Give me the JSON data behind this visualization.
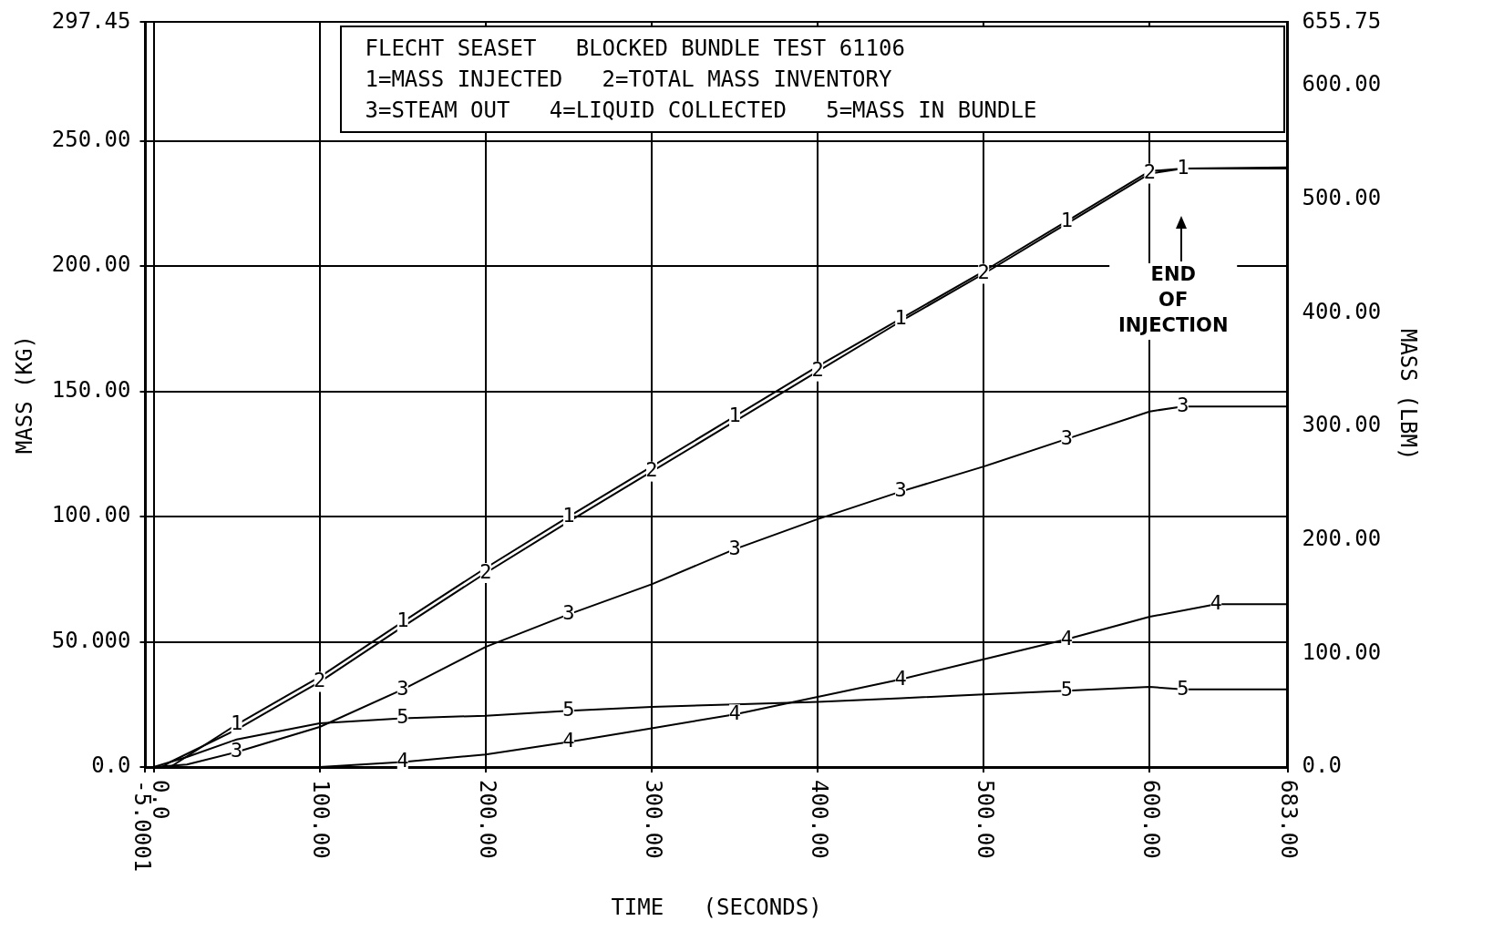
{
  "chart_data": {
    "type": "line",
    "title": "FLECHT SEASET   BLOCKED BUNDLE TEST 61106",
    "xlabel": "TIME   (SECONDS)",
    "ylabel": "MASS (KG)",
    "y2label": "MASS (LBM)",
    "subtitle": "1=MASS INJECTED   2=TOTAL MASS INVENTORY\n3=STEAM OUT   4=LIQUID COLLECTED   5=MASS IN BUNDLE",
    "annotations": [
      "END OF INJECTION"
    ],
    "xlim": [
      -5.0001,
      683
    ],
    "xticks": [
      -5.0001,
      {
        "value": 0,
        "label": "0.0"
      },
      {
        "value": 100,
        "label": "100.00"
      },
      {
        "value": 200,
        "label": "200.00"
      },
      {
        "value": 300,
        "label": "300.00"
      },
      {
        "value": 400,
        "label": "400.00"
      },
      {
        "value": 500,
        "label": "500.00"
      },
      {
        "value": 600,
        "label": "600.00"
      },
      {
        "value": 683,
        "label": "683.00"
      }
    ],
    "ylim": [
      0,
      297.45
    ],
    "yticks": [
      {
        "value": 0,
        "label": "0.0"
      },
      {
        "value": 50,
        "label": "50.000"
      },
      {
        "value": 100,
        "label": "100.00"
      },
      {
        "value": 150,
        "label": "150.00"
      },
      {
        "value": 200,
        "label": "200.00"
      },
      {
        "value": 250,
        "label": "250.00"
      },
      297.45
    ],
    "y2lim": [
      0,
      655.75
    ],
    "y2ticks": [
      {
        "value": 0,
        "label": "0.0"
      },
      {
        "value": 100,
        "label": "100.00"
      },
      {
        "value": 200,
        "label": "200.00"
      },
      {
        "value": 300,
        "label": "300.00"
      },
      {
        "value": 400,
        "label": "400.00"
      },
      {
        "value": 500,
        "label": "500.00"
      },
      {
        "value": 600,
        "label": "600.00"
      },
      655.75
    ],
    "grid": true,
    "legend": false,
    "marker": "none",
    "line_style": "solid",
    "series": [
      {
        "name": "1",
        "color": "#000000",
        "x": [
          0,
          10,
          50,
          100,
          150,
          200,
          250,
          300,
          350,
          400,
          450,
          500,
          550,
          600,
          620,
          683
        ],
        "values": [
          0,
          0,
          17,
          36,
          58,
          79.5,
          100,
          120,
          140,
          160,
          179,
          198,
          218,
          238,
          239,
          239.5
        ]
      },
      {
        "name": "2",
        "color": "#000000",
        "x": [
          5,
          10,
          50,
          100,
          150,
          200,
          250,
          300,
          350,
          400,
          450,
          500,
          550,
          600,
          620,
          683
        ],
        "values": [
          0,
          2,
          15,
          34,
          56,
          77.5,
          98,
          118,
          138,
          158,
          178,
          197,
          217,
          237,
          239,
          239
        ]
      },
      {
        "name": "3",
        "color": "#000000",
        "x": [
          0,
          20,
          50,
          100,
          150,
          200,
          250,
          300,
          350,
          400,
          450,
          500,
          550,
          600,
          620,
          683
        ],
        "values": [
          0,
          1,
          6,
          16,
          31,
          48,
          61,
          73,
          87,
          99,
          110,
          120,
          131,
          142,
          144,
          144
        ]
      },
      {
        "name": "4",
        "color": "#000000",
        "x": [
          0,
          50,
          100,
          150,
          200,
          250,
          300,
          350,
          400,
          450,
          500,
          550,
          600,
          640,
          683
        ],
        "values": [
          0,
          0,
          0,
          2,
          5,
          10,
          15.5,
          21,
          28,
          35,
          43,
          51,
          60,
          65,
          65
        ]
      },
      {
        "name": "5",
        "color": "#000000",
        "x": [
          0,
          20,
          50,
          100,
          150,
          200,
          250,
          300,
          350,
          400,
          450,
          500,
          550,
          600,
          620,
          683
        ],
        "values": [
          0,
          4,
          11,
          17.5,
          19.5,
          20.5,
          22.5,
          24,
          25,
          26,
          27.5,
          29,
          30.5,
          32,
          31,
          31
        ]
      }
    ]
  }
}
